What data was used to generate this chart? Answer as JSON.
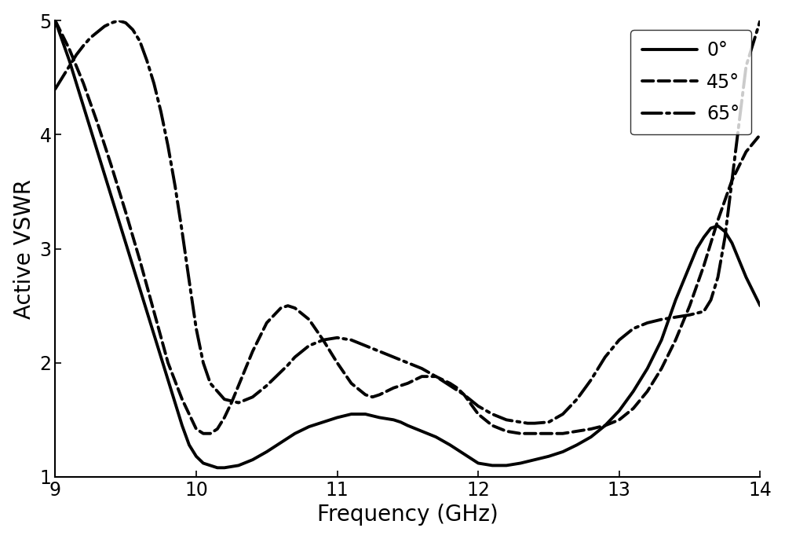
{
  "title": "",
  "xlabel": "Frequency (GHz)",
  "ylabel": "Active VSWR",
  "xlim": [
    9,
    14
  ],
  "ylim": [
    1,
    5
  ],
  "xticks": [
    9,
    10,
    11,
    12,
    13,
    14
  ],
  "yticks": [
    1,
    2,
    3,
    4,
    5
  ],
  "background_color": "#ffffff",
  "curves": {
    "0deg": {
      "label": "0°",
      "linestyle": "solid",
      "linewidth": 2.8,
      "color": "#000000",
      "x": [
        9.0,
        9.1,
        9.2,
        9.3,
        9.4,
        9.5,
        9.6,
        9.7,
        9.8,
        9.85,
        9.9,
        9.95,
        10.0,
        10.05,
        10.1,
        10.15,
        10.2,
        10.3,
        10.4,
        10.5,
        10.6,
        10.7,
        10.8,
        10.9,
        11.0,
        11.1,
        11.2,
        11.3,
        11.4,
        11.45,
        11.5,
        11.6,
        11.7,
        11.8,
        11.9,
        12.0,
        12.1,
        12.2,
        12.3,
        12.4,
        12.5,
        12.6,
        12.7,
        12.8,
        12.9,
        13.0,
        13.1,
        13.2,
        13.3,
        13.4,
        13.5,
        13.55,
        13.6,
        13.65,
        13.7,
        13.75,
        13.8,
        13.9,
        14.0
      ],
      "y": [
        5.0,
        4.65,
        4.25,
        3.85,
        3.45,
        3.05,
        2.65,
        2.25,
        1.85,
        1.65,
        1.45,
        1.28,
        1.18,
        1.12,
        1.1,
        1.08,
        1.08,
        1.1,
        1.15,
        1.22,
        1.3,
        1.38,
        1.44,
        1.48,
        1.52,
        1.55,
        1.55,
        1.52,
        1.5,
        1.48,
        1.45,
        1.4,
        1.35,
        1.28,
        1.2,
        1.12,
        1.1,
        1.1,
        1.12,
        1.15,
        1.18,
        1.22,
        1.28,
        1.35,
        1.45,
        1.58,
        1.75,
        1.95,
        2.2,
        2.55,
        2.85,
        3.0,
        3.1,
        3.18,
        3.2,
        3.15,
        3.05,
        2.75,
        2.5
      ]
    },
    "45deg": {
      "label": "45°",
      "linestyle": "dashed",
      "linewidth": 2.8,
      "color": "#000000",
      "x": [
        9.0,
        9.1,
        9.2,
        9.3,
        9.4,
        9.5,
        9.6,
        9.7,
        9.8,
        9.9,
        10.0,
        10.05,
        10.1,
        10.15,
        10.2,
        10.25,
        10.3,
        10.4,
        10.5,
        10.6,
        10.65,
        10.7,
        10.8,
        10.9,
        11.0,
        11.1,
        11.2,
        11.25,
        11.3,
        11.4,
        11.45,
        11.5,
        11.55,
        11.6,
        11.7,
        11.75,
        11.8,
        11.85,
        11.9,
        12.0,
        12.1,
        12.2,
        12.3,
        12.4,
        12.5,
        12.6,
        12.7,
        12.8,
        12.9,
        13.0,
        13.1,
        13.2,
        13.3,
        13.4,
        13.5,
        13.6,
        13.7,
        13.8,
        13.9,
        14.0
      ],
      "y": [
        5.0,
        4.75,
        4.45,
        4.1,
        3.72,
        3.32,
        2.9,
        2.45,
        2.0,
        1.68,
        1.42,
        1.38,
        1.38,
        1.42,
        1.52,
        1.65,
        1.8,
        2.1,
        2.35,
        2.48,
        2.5,
        2.48,
        2.38,
        2.2,
        2.0,
        1.82,
        1.72,
        1.7,
        1.72,
        1.78,
        1.8,
        1.82,
        1.85,
        1.88,
        1.88,
        1.85,
        1.82,
        1.78,
        1.72,
        1.55,
        1.45,
        1.4,
        1.38,
        1.38,
        1.38,
        1.38,
        1.4,
        1.42,
        1.45,
        1.5,
        1.6,
        1.75,
        1.95,
        2.2,
        2.5,
        2.85,
        3.25,
        3.6,
        3.85,
        4.0
      ]
    },
    "65deg": {
      "label": "65°",
      "linestyle": "dashdot",
      "linewidth": 2.8,
      "color": "#000000",
      "x": [
        9.0,
        9.05,
        9.1,
        9.15,
        9.2,
        9.25,
        9.3,
        9.35,
        9.4,
        9.45,
        9.5,
        9.55,
        9.6,
        9.65,
        9.7,
        9.75,
        9.8,
        9.85,
        9.9,
        9.95,
        10.0,
        10.05,
        10.1,
        10.2,
        10.3,
        10.4,
        10.5,
        10.6,
        10.65,
        10.7,
        10.75,
        10.8,
        10.9,
        11.0,
        11.1,
        11.2,
        11.3,
        11.4,
        11.5,
        11.6,
        11.7,
        11.8,
        11.9,
        12.0,
        12.1,
        12.2,
        12.3,
        12.35,
        12.4,
        12.5,
        12.6,
        12.7,
        12.8,
        12.9,
        13.0,
        13.1,
        13.2,
        13.3,
        13.4,
        13.5,
        13.6,
        13.65,
        13.7,
        13.75,
        13.8,
        13.85,
        13.9,
        14.0
      ],
      "y": [
        4.4,
        4.5,
        4.6,
        4.7,
        4.78,
        4.85,
        4.9,
        4.95,
        4.98,
        5.0,
        4.98,
        4.92,
        4.82,
        4.65,
        4.45,
        4.2,
        3.9,
        3.55,
        3.15,
        2.72,
        2.3,
        2.0,
        1.82,
        1.68,
        1.65,
        1.7,
        1.8,
        1.92,
        1.98,
        2.05,
        2.1,
        2.15,
        2.2,
        2.22,
        2.2,
        2.15,
        2.1,
        2.05,
        2.0,
        1.95,
        1.88,
        1.8,
        1.72,
        1.62,
        1.55,
        1.5,
        1.48,
        1.47,
        1.47,
        1.48,
        1.55,
        1.68,
        1.85,
        2.05,
        2.2,
        2.3,
        2.35,
        2.38,
        2.4,
        2.42,
        2.45,
        2.55,
        2.75,
        3.1,
        3.6,
        4.1,
        4.6,
        5.0
      ]
    }
  },
  "legend": {
    "loc": "upper right",
    "fontsize": 17,
    "frameon": true,
    "edgecolor": "#000000",
    "handlelength": 3.0,
    "labelspacing": 0.7
  },
  "tick_fontsize": 17,
  "label_fontsize": 20,
  "figsize": [
    10.0,
    6.86
  ],
  "dpi": 100
}
